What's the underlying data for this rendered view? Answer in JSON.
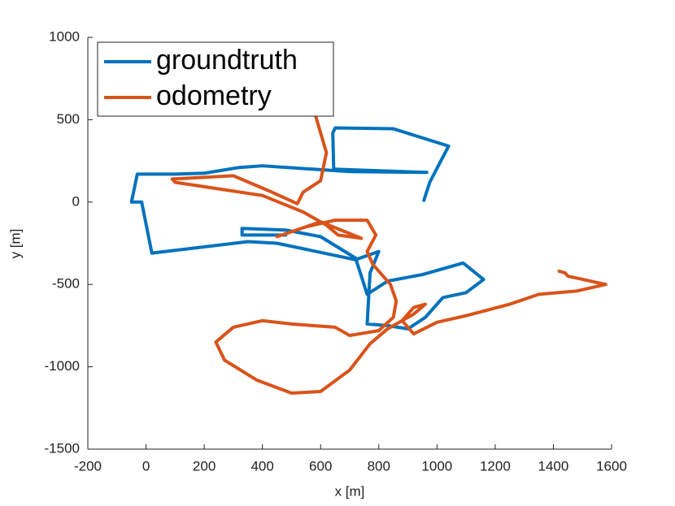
{
  "chart_data": {
    "type": "line",
    "xlabel": "x [m]",
    "ylabel": "y [m]",
    "xlim": [
      -200,
      1600
    ],
    "xticks": [
      -200,
      0,
      200,
      400,
      600,
      800,
      1000,
      1200,
      1400,
      1600
    ],
    "ylim": [
      -1500,
      1000
    ],
    "yticks": [
      -1500,
      -1000,
      -500,
      0,
      500,
      1000
    ],
    "legend": "upper left",
    "series": [
      {
        "name": "groundtruth",
        "color": "#0072bd",
        "x": [
          955,
          975,
          1040,
          850,
          650,
          642,
          645,
          965,
          700,
          400,
          320,
          200,
          100,
          -30,
          -50,
          -15,
          20,
          350,
          450,
          720,
          800,
          770,
          760,
          830,
          900,
          960,
          1020,
          1100,
          1160,
          1090,
          950,
          830,
          760,
          720,
          600,
          480,
          330,
          330,
          480
        ],
        "values": [
          10,
          120,
          340,
          445,
          450,
          420,
          200,
          180,
          185,
          220,
          210,
          175,
          170,
          170,
          0,
          0,
          -310,
          -240,
          -250,
          -350,
          -300,
          -430,
          -740,
          -750,
          -770,
          -700,
          -580,
          -550,
          -470,
          -370,
          -440,
          -480,
          -560,
          -340,
          -210,
          -170,
          -160,
          -200,
          -200
        ]
      },
      {
        "name": "odometry",
        "color": "#d95319",
        "x": [
          580,
          620,
          600,
          540,
          520,
          420,
          300,
          90,
          100,
          400,
          540,
          620,
          660,
          740,
          600,
          450,
          550,
          650,
          760,
          790,
          760,
          780,
          840,
          860,
          850,
          800,
          700,
          650,
          500,
          400,
          300,
          240,
          270,
          380,
          500,
          600,
          700,
          770,
          830,
          920,
          960,
          920,
          880,
          920,
          1000,
          1100,
          1250,
          1350,
          1480,
          1580,
          1450,
          1440,
          1420
        ],
        "values": [
          540,
          300,
          130,
          60,
          -10,
          70,
          160,
          140,
          120,
          40,
          -60,
          -140,
          -200,
          -220,
          -120,
          -210,
          -150,
          -110,
          -110,
          -200,
          -300,
          -380,
          -500,
          -600,
          -700,
          -780,
          -810,
          -760,
          -740,
          -720,
          -760,
          -850,
          -960,
          -1080,
          -1160,
          -1150,
          -1020,
          -860,
          -770,
          -680,
          -620,
          -640,
          -720,
          -800,
          -730,
          -690,
          -620,
          -560,
          -540,
          -500,
          -450,
          -430,
          -420
        ]
      }
    ]
  }
}
